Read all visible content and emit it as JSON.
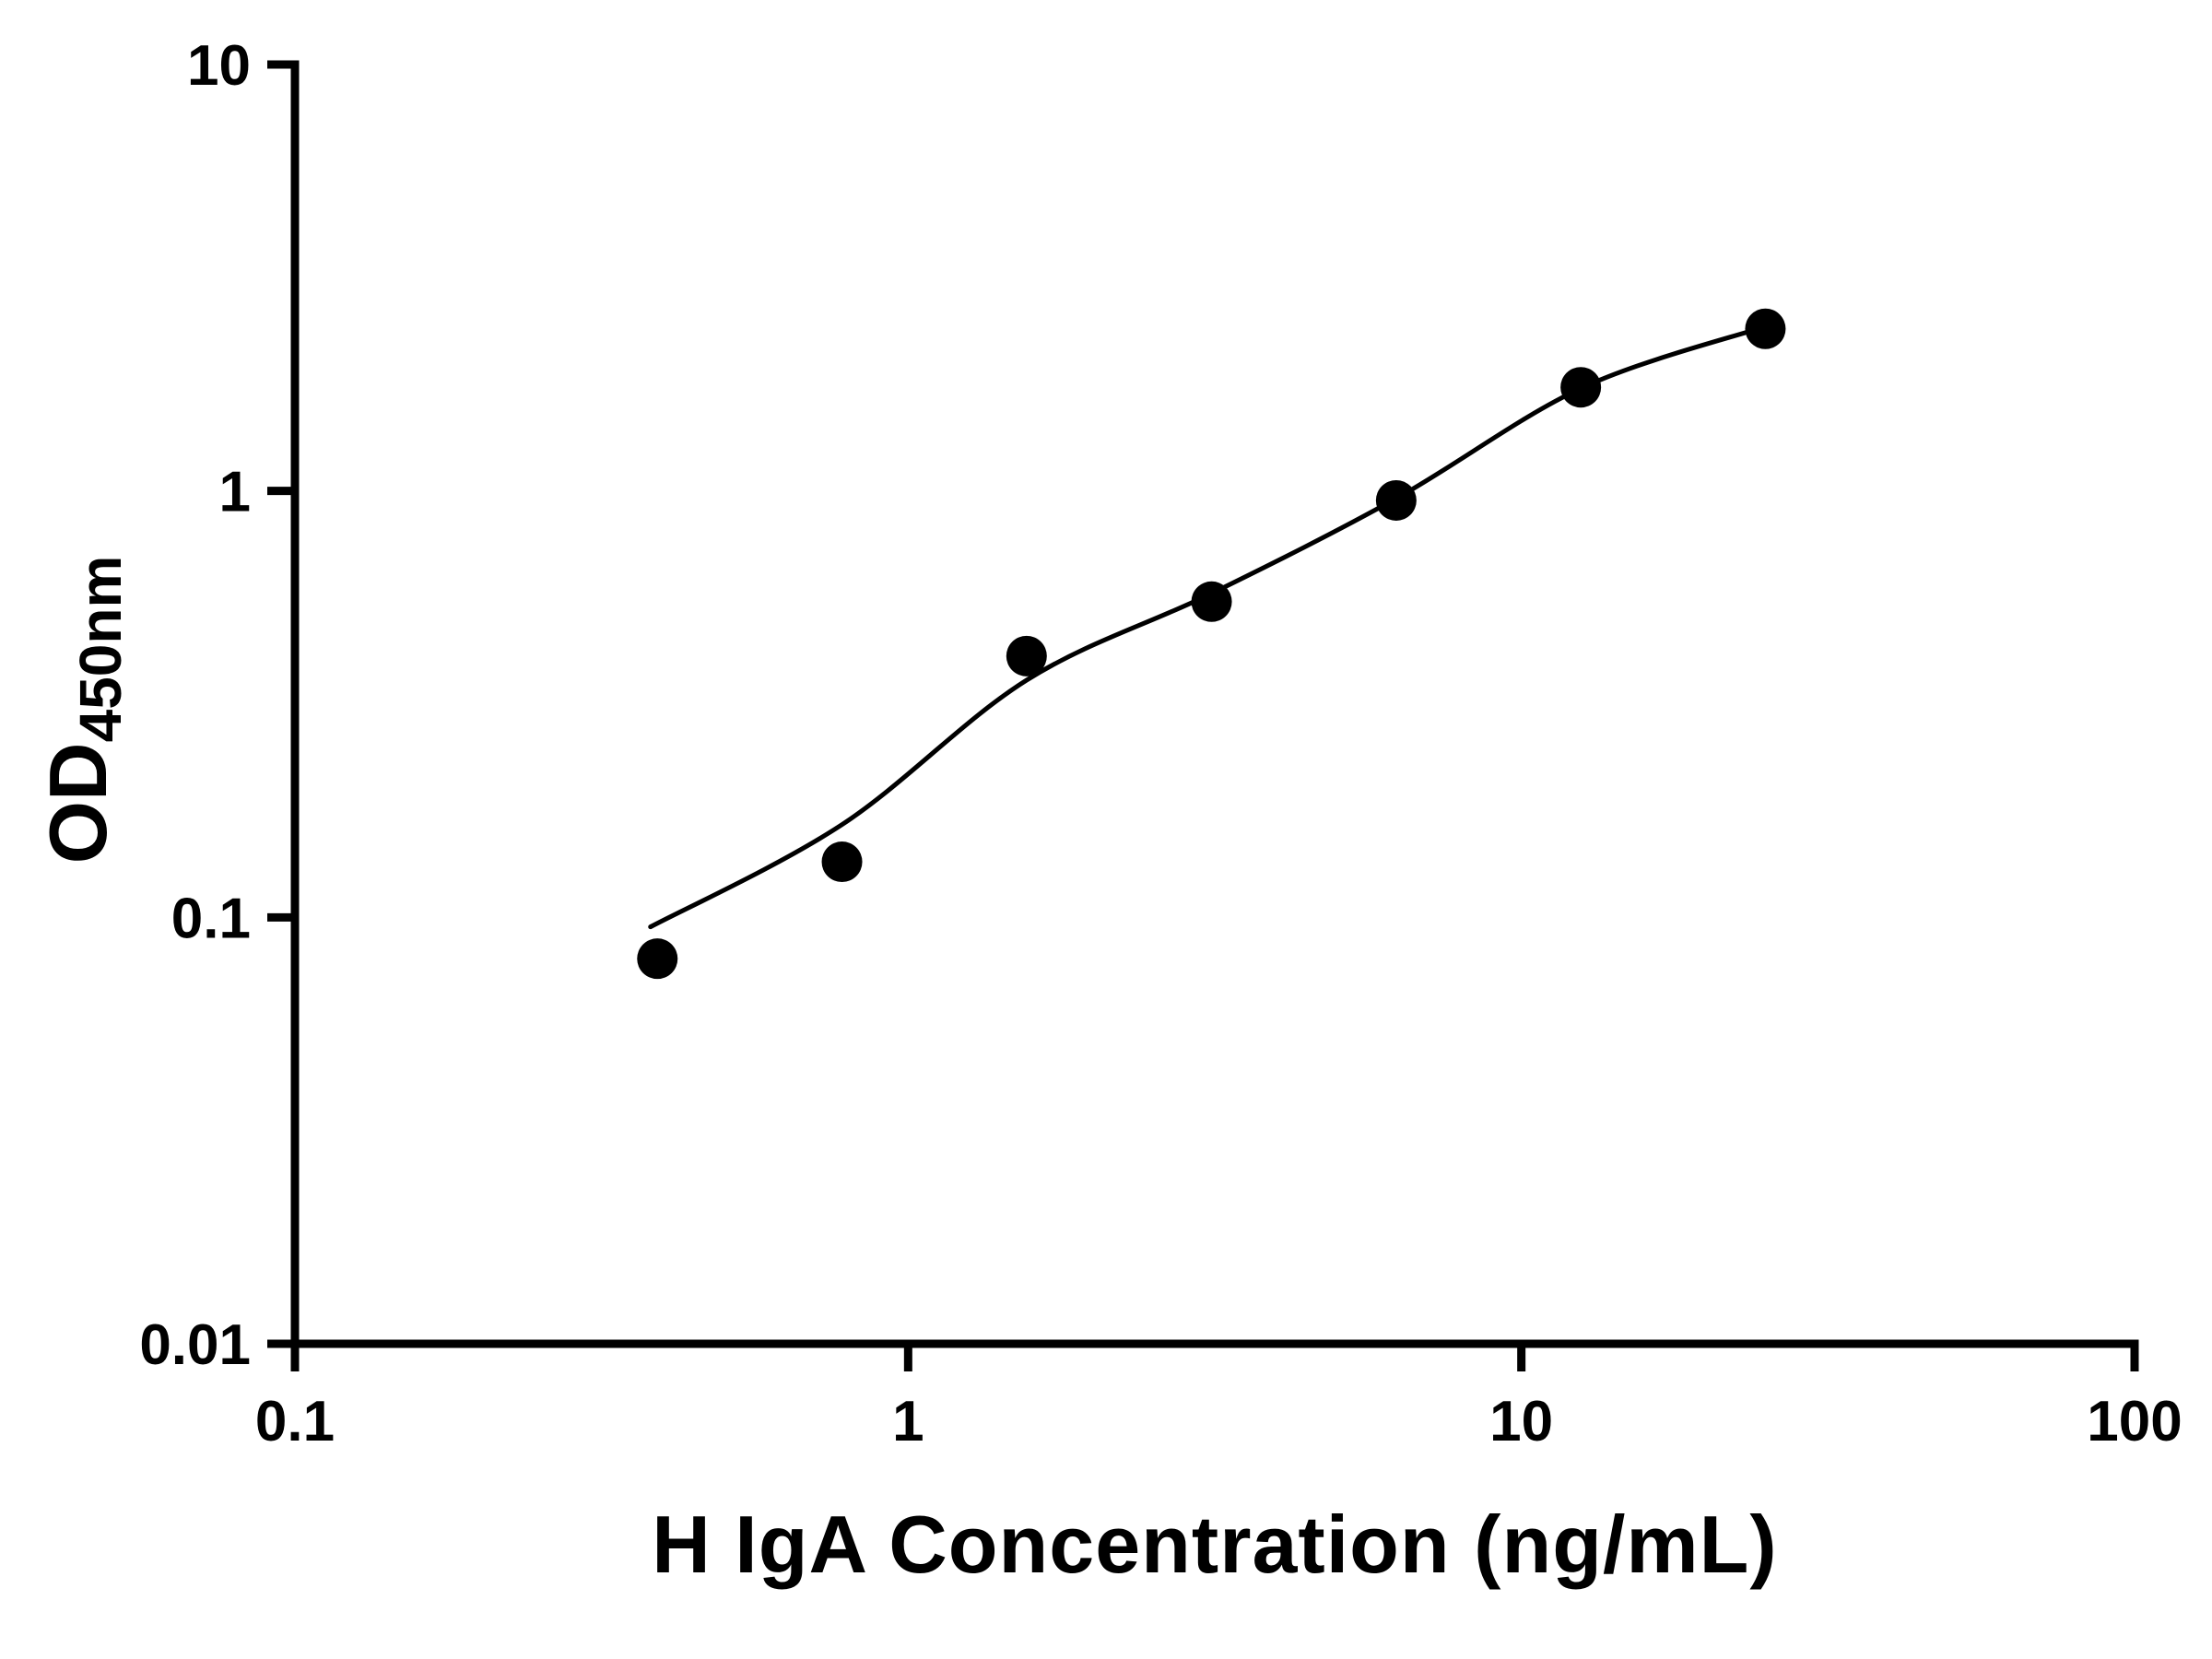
{
  "chart_data": {
    "type": "scatter",
    "title": "",
    "xlabel": "H IgA Concentration (ng/mL)",
    "ylabel_main": "OD",
    "ylabel_sub": "450nm",
    "x_scale": "log",
    "y_scale": "log",
    "xlim": [
      0.1,
      100
    ],
    "ylim": [
      0.01,
      10
    ],
    "x_ticks": [
      0.1,
      1,
      10,
      100
    ],
    "x_tick_labels": [
      "0.1",
      "1",
      "10",
      "100"
    ],
    "y_ticks": [
      0.01,
      0.1,
      1,
      10
    ],
    "y_tick_labels": [
      "0.01",
      "0.1",
      "1",
      "10"
    ],
    "grid": false,
    "legend": null,
    "marker_size": 22,
    "colors": {
      "points": "#000000",
      "line": "#000000",
      "axis": "#000000",
      "background": "#ffffff"
    },
    "points": [
      {
        "x": 0.39,
        "y": 0.08
      },
      {
        "x": 0.78,
        "y": 0.135
      },
      {
        "x": 1.56,
        "y": 0.41
      },
      {
        "x": 3.125,
        "y": 0.55
      },
      {
        "x": 6.25,
        "y": 0.95
      },
      {
        "x": 12.5,
        "y": 1.75
      },
      {
        "x": 25,
        "y": 2.4
      }
    ],
    "fit_curve": [
      {
        "x": 0.38,
        "y": 0.095
      },
      {
        "x": 0.78,
        "y": 0.165
      },
      {
        "x": 1.56,
        "y": 0.36
      },
      {
        "x": 3.125,
        "y": 0.575
      },
      {
        "x": 6.25,
        "y": 0.96
      },
      {
        "x": 12.5,
        "y": 1.74
      },
      {
        "x": 25,
        "y": 2.43
      }
    ]
  }
}
